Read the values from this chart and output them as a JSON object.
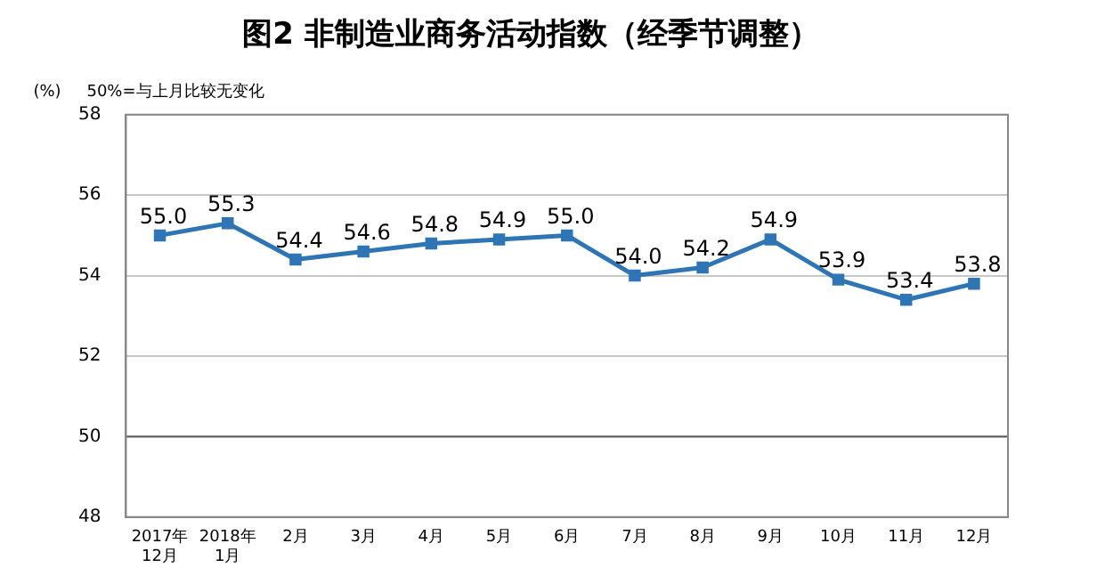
{
  "chart_data": {
    "type": "line",
    "title": "图2 非制造业商务活动指数（经季节调整）",
    "ylabel": "(%)",
    "annotations": [
      "50%=与上月比较无变化"
    ],
    "categories": [
      "2017年\n12月",
      "2018年\n1月",
      "2月",
      "3月",
      "4月",
      "5月",
      "6月",
      "7月",
      "8月",
      "9月",
      "10月",
      "11月",
      "12月"
    ],
    "series": [
      {
        "color": "#2e75b6",
        "values": [
          55.0,
          55.3,
          54.4,
          54.6,
          54.8,
          54.9,
          55.0,
          54.0,
          54.2,
          54.9,
          53.9,
          53.4,
          53.8
        ]
      }
    ],
    "value_labels": [
      "55.0",
      "55.3",
      "54.4",
      "54.6",
      "54.8",
      "54.9",
      "55.0",
      "54.0",
      "54.2",
      "54.9",
      "53.9",
      "53.4",
      "53.8"
    ],
    "ylim": [
      48,
      58
    ],
    "yticks": [
      48,
      50,
      52,
      54,
      56,
      58
    ],
    "grid": "y",
    "legend": false,
    "marker": "square",
    "line_style": "solid",
    "ref_lines": [
      {
        "axis": "y",
        "value": 50,
        "color": "#595959"
      }
    ]
  }
}
